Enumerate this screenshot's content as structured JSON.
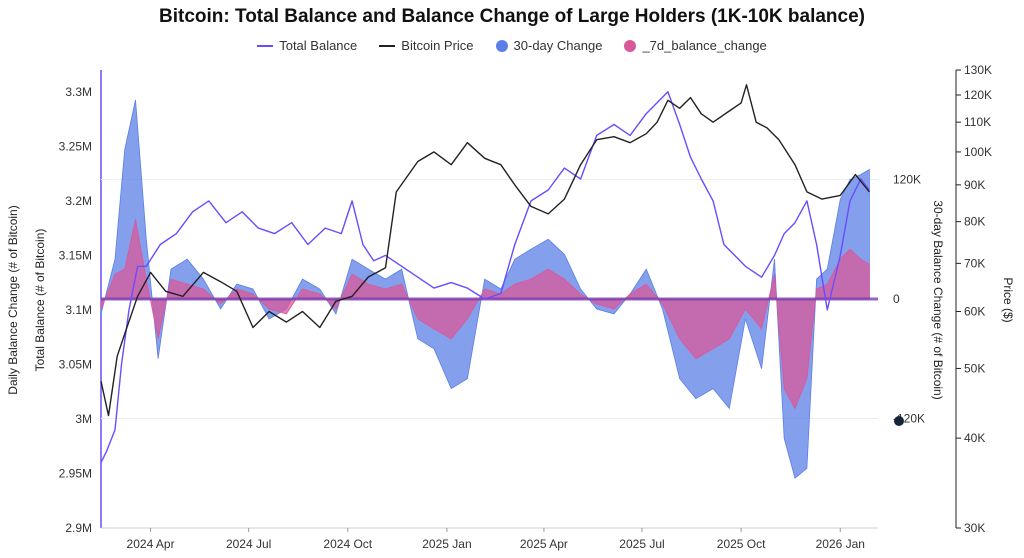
{
  "chart_data": {
    "type": "area",
    "title": "Bitcoin: Total Balance and Balance Change of Large Holders (1K-10K balance)",
    "x_ticks": [
      "2024 Apr",
      "2024 Jul",
      "2024 Oct",
      "2025 Jan",
      "2025 Apr",
      "2025 Jul",
      "2025 Oct",
      "2026 Jan"
    ],
    "axes": {
      "left_outer": {
        "label": "Daily Balance Change (# of Bitcoin)"
      },
      "left": {
        "label": "Total Balance (# of Bitcoin)",
        "ticks": [
          "3.3M",
          "3.25M",
          "3.2M",
          "3.15M",
          "3.1M",
          "3.05M",
          "3M",
          "2.95M",
          "2.9M"
        ],
        "range": [
          2900000,
          3320000
        ]
      },
      "right_inner": {
        "label": "30-day Balance Change (# of Bitcoin)",
        "ticks": [
          "120K",
          "0",
          "-120K"
        ],
        "range": [
          -230000,
          230000
        ]
      },
      "right": {
        "label": "Price ($)",
        "ticks": [
          "130K",
          "120K",
          "110K",
          "100K",
          "90K",
          "80K",
          "70K",
          "60K",
          "50K",
          "40K",
          "30K"
        ],
        "scale": "log",
        "range": [
          30000,
          130000
        ]
      }
    },
    "legend": {
      "position": "top-center",
      "entries": [
        {
          "name": "Total Balance",
          "color": "#6a4cff",
          "kind": "line"
        },
        {
          "name": "Bitcoin Price",
          "color": "#222222",
          "kind": "line"
        },
        {
          "name": "30-day Change",
          "color": "#5b7fe6",
          "kind": "area"
        },
        {
          "name": "_7d_balance_change",
          "color": "#d9589a",
          "kind": "area"
        }
      ]
    },
    "series": {
      "total_balance": {
        "x": [
          "2024-02-15",
          "2024-02-20",
          "2024-02-28",
          "2024-03-05",
          "2024-03-12",
          "2024-03-20",
          "2024-03-28",
          "2024-04-10",
          "2024-04-25",
          "2024-05-10",
          "2024-05-25",
          "2024-06-10",
          "2024-06-25",
          "2024-07-10",
          "2024-07-25",
          "2024-08-10",
          "2024-08-25",
          "2024-09-10",
          "2024-09-25",
          "2024-10-05",
          "2024-10-15",
          "2024-10-25",
          "2024-11-05",
          "2024-11-20",
          "2024-12-05",
          "2024-12-20",
          "2025-01-05",
          "2025-01-20",
          "2025-02-05",
          "2025-02-20",
          "2025-03-05",
          "2025-03-20",
          "2025-04-05",
          "2025-04-20",
          "2025-05-05",
          "2025-05-20",
          "2025-06-05",
          "2025-06-20",
          "2025-07-05",
          "2025-07-15",
          "2025-07-25",
          "2025-08-05",
          "2025-08-15",
          "2025-08-25",
          "2025-09-05",
          "2025-09-15",
          "2025-09-25",
          "2025-10-05",
          "2025-10-20",
          "2025-11-01",
          "2025-11-10",
          "2025-11-20",
          "2025-12-01",
          "2025-12-10",
          "2025-12-20",
          "2026-01-01",
          "2026-01-10",
          "2026-01-20",
          "2026-01-28"
        ],
        "values": [
          2960000,
          2970000,
          2990000,
          3050000,
          3100000,
          3140000,
          3140000,
          3160000,
          3170000,
          3190000,
          3200000,
          3180000,
          3190000,
          3175000,
          3170000,
          3180000,
          3160000,
          3175000,
          3170000,
          3200000,
          3160000,
          3145000,
          3150000,
          3140000,
          3130000,
          3120000,
          3125000,
          3120000,
          3110000,
          3115000,
          3160000,
          3200000,
          3210000,
          3230000,
          3220000,
          3260000,
          3270000,
          3260000,
          3280000,
          3290000,
          3300000,
          3270000,
          3240000,
          3220000,
          3200000,
          3160000,
          3150000,
          3140000,
          3130000,
          3150000,
          3170000,
          3180000,
          3200000,
          3160000,
          3100000,
          3150000,
          3200000,
          3220000,
          3210000
        ]
      },
      "bitcoin_price": {
        "x": [
          "2024-02-15",
          "2024-02-22",
          "2024-03-01",
          "2024-03-10",
          "2024-03-20",
          "2024-04-01",
          "2024-04-15",
          "2024-05-01",
          "2024-05-20",
          "2024-06-05",
          "2024-06-20",
          "2024-07-05",
          "2024-07-20",
          "2024-08-05",
          "2024-08-20",
          "2024-09-05",
          "2024-09-20",
          "2024-10-05",
          "2024-10-20",
          "2024-11-05",
          "2024-11-15",
          "2024-12-05",
          "2024-12-20",
          "2025-01-05",
          "2025-01-20",
          "2025-02-05",
          "2025-02-20",
          "2025-03-05",
          "2025-03-20",
          "2025-04-05",
          "2025-04-20",
          "2025-05-05",
          "2025-05-20",
          "2025-06-05",
          "2025-06-20",
          "2025-07-05",
          "2025-07-15",
          "2025-07-25",
          "2025-08-05",
          "2025-08-15",
          "2025-08-25",
          "2025-09-05",
          "2025-09-20",
          "2025-10-01",
          "2025-10-06",
          "2025-10-15",
          "2025-10-25",
          "2025-11-05",
          "2025-11-20",
          "2025-12-01",
          "2025-12-15",
          "2026-01-01",
          "2026-01-15",
          "2026-01-28"
        ],
        "values": [
          48000,
          43000,
          52000,
          57000,
          63000,
          68000,
          64000,
          63000,
          68000,
          66000,
          64000,
          57000,
          60000,
          58000,
          60000,
          57000,
          62000,
          63000,
          67000,
          69000,
          88000,
          97000,
          100000,
          96000,
          103000,
          98000,
          96000,
          90000,
          84000,
          82000,
          86000,
          96000,
          104000,
          105000,
          103000,
          106000,
          110000,
          118000,
          115000,
          119000,
          113000,
          110000,
          114000,
          117000,
          124000,
          110000,
          108000,
          104000,
          96000,
          88000,
          86000,
          87000,
          93000,
          88000
        ]
      },
      "change_30d": {
        "x": [
          "2024-02-15",
          "2024-02-28",
          "2024-03-08",
          "2024-03-18",
          "2024-03-28",
          "2024-04-08",
          "2024-04-20",
          "2024-05-05",
          "2024-05-20",
          "2024-06-05",
          "2024-06-20",
          "2024-07-05",
          "2024-07-20",
          "2024-08-05",
          "2024-08-20",
          "2024-09-05",
          "2024-09-20",
          "2024-10-05",
          "2024-10-20",
          "2024-11-05",
          "2024-11-20",
          "2024-12-05",
          "2024-12-20",
          "2025-01-05",
          "2025-01-20",
          "2025-02-05",
          "2025-02-20",
          "2025-03-05",
          "2025-03-20",
          "2025-04-05",
          "2025-04-20",
          "2025-05-05",
          "2025-05-20",
          "2025-06-05",
          "2025-06-20",
          "2025-07-05",
          "2025-07-20",
          "2025-08-05",
          "2025-08-20",
          "2025-09-05",
          "2025-09-20",
          "2025-10-05",
          "2025-10-20",
          "2025-11-01",
          "2025-11-10",
          "2025-11-20",
          "2025-12-01",
          "2025-12-10",
          "2025-12-20",
          "2026-01-01",
          "2026-01-10",
          "2026-01-20",
          "2026-01-28"
        ],
        "values": [
          -15000,
          40000,
          150000,
          200000,
          60000,
          -60000,
          30000,
          40000,
          20000,
          -10000,
          15000,
          10000,
          -20000,
          -10000,
          20000,
          10000,
          -15000,
          40000,
          30000,
          20000,
          30000,
          -40000,
          -50000,
          -90000,
          -80000,
          20000,
          10000,
          40000,
          50000,
          60000,
          45000,
          10000,
          -10000,
          -15000,
          5000,
          30000,
          -10000,
          -80000,
          -100000,
          -90000,
          -110000,
          -20000,
          -70000,
          40000,
          -140000,
          -180000,
          -170000,
          20000,
          30000,
          100000,
          120000,
          125000,
          130000
        ]
      },
      "change_7d": {
        "x": [
          "2024-02-15",
          "2024-02-28",
          "2024-03-08",
          "2024-03-18",
          "2024-03-28",
          "2024-04-08",
          "2024-04-20",
          "2024-05-05",
          "2024-05-20",
          "2024-06-05",
          "2024-06-20",
          "2024-07-05",
          "2024-07-20",
          "2024-08-05",
          "2024-08-20",
          "2024-09-05",
          "2024-09-20",
          "2024-10-05",
          "2024-10-20",
          "2024-11-05",
          "2024-11-20",
          "2024-12-05",
          "2024-12-20",
          "2025-01-05",
          "2025-01-20",
          "2025-02-05",
          "2025-02-20",
          "2025-03-05",
          "2025-03-20",
          "2025-04-05",
          "2025-04-20",
          "2025-05-05",
          "2025-05-20",
          "2025-06-05",
          "2025-06-20",
          "2025-07-05",
          "2025-07-20",
          "2025-08-05",
          "2025-08-20",
          "2025-09-05",
          "2025-09-20",
          "2025-10-05",
          "2025-10-20",
          "2025-11-01",
          "2025-11-10",
          "2025-11-20",
          "2025-12-01",
          "2025-12-10",
          "2025-12-20",
          "2026-01-01",
          "2026-01-10",
          "2026-01-20",
          "2026-01-28"
        ],
        "values": [
          -10000,
          25000,
          30000,
          80000,
          20000,
          -40000,
          20000,
          15000,
          10000,
          -5000,
          10000,
          5000,
          -10000,
          -15000,
          10000,
          5000,
          -10000,
          25000,
          15000,
          10000,
          15000,
          -20000,
          -30000,
          -40000,
          -20000,
          10000,
          5000,
          15000,
          20000,
          30000,
          20000,
          5000,
          -5000,
          -10000,
          5000,
          15000,
          -5000,
          -40000,
          -60000,
          -50000,
          -40000,
          -10000,
          -30000,
          25000,
          -90000,
          -110000,
          -80000,
          10000,
          15000,
          40000,
          50000,
          40000,
          35000
        ]
      }
    }
  }
}
